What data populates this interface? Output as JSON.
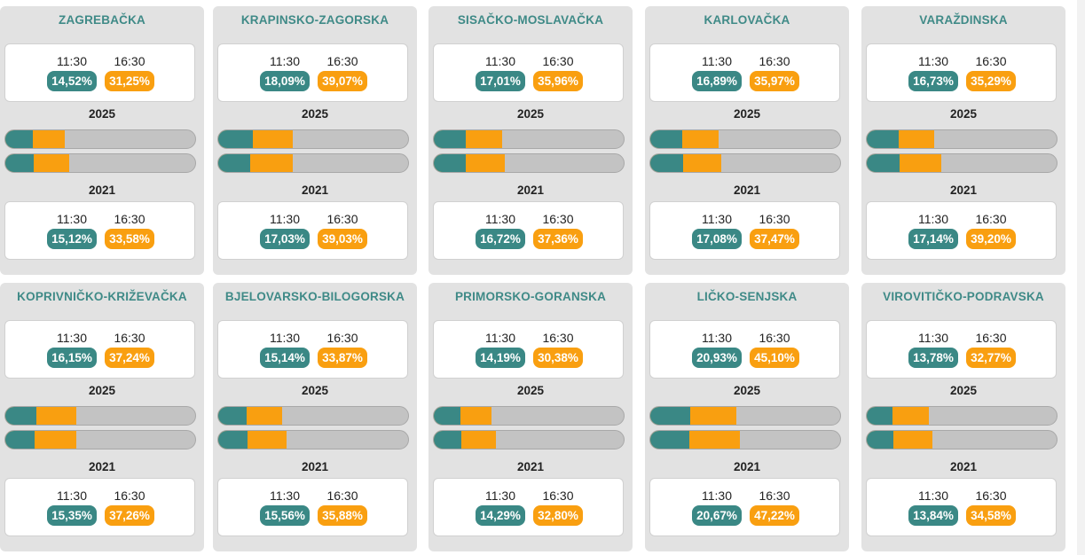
{
  "labels": {
    "time_1": "11:30",
    "time_2": "16:30",
    "year_current": "2025",
    "year_previous": "2021"
  },
  "colors": {
    "teal": "#3a8885",
    "orange": "#f99f10",
    "bar_track": "#c3c3c3",
    "title": "#3f8a87"
  },
  "counties": [
    {
      "name": "ZAGREBAČKA",
      "y2025": {
        "t1130": "14,52%",
        "t1630": "31,25%"
      },
      "y2021": {
        "t1130": "15,12%",
        "t1630": "33,58%"
      }
    },
    {
      "name": "KRAPINSKO-ZAGORSKA",
      "y2025": {
        "t1130": "18,09%",
        "t1630": "39,07%"
      },
      "y2021": {
        "t1130": "17,03%",
        "t1630": "39,03%"
      }
    },
    {
      "name": "SISAČKO-MOSLAVAČKA",
      "y2025": {
        "t1130": "17,01%",
        "t1630": "35,96%"
      },
      "y2021": {
        "t1130": "16,72%",
        "t1630": "37,36%"
      }
    },
    {
      "name": "KARLOVAČKA",
      "y2025": {
        "t1130": "16,89%",
        "t1630": "35,97%"
      },
      "y2021": {
        "t1130": "17,08%",
        "t1630": "37,47%"
      }
    },
    {
      "name": "VARAŽDINSKA",
      "y2025": {
        "t1130": "16,73%",
        "t1630": "35,29%"
      },
      "y2021": {
        "t1130": "17,14%",
        "t1630": "39,20%"
      }
    },
    {
      "name": "KOPRIVNIČKO-KRIŽEVAČKA",
      "y2025": {
        "t1130": "16,15%",
        "t1630": "37,24%"
      },
      "y2021": {
        "t1130": "15,35%",
        "t1630": "37,26%"
      }
    },
    {
      "name": "BJELOVARSKO-BILOGORSKA",
      "y2025": {
        "t1130": "15,14%",
        "t1630": "33,87%"
      },
      "y2021": {
        "t1130": "15,56%",
        "t1630": "35,88%"
      }
    },
    {
      "name": "PRIMORSKO-GORANSKA",
      "y2025": {
        "t1130": "14,19%",
        "t1630": "30,38%"
      },
      "y2021": {
        "t1130": "14,29%",
        "t1630": "32,80%"
      }
    },
    {
      "name": "LIČKO-SENJSKA",
      "y2025": {
        "t1130": "20,93%",
        "t1630": "45,10%"
      },
      "y2021": {
        "t1130": "20,67%",
        "t1630": "47,22%"
      }
    },
    {
      "name": "VIROVITIČKO-PODRAVSKA",
      "y2025": {
        "t1130": "13,78%",
        "t1630": "32,77%"
      },
      "y2021": {
        "t1130": "13,84%",
        "t1630": "34,58%"
      }
    }
  ]
}
